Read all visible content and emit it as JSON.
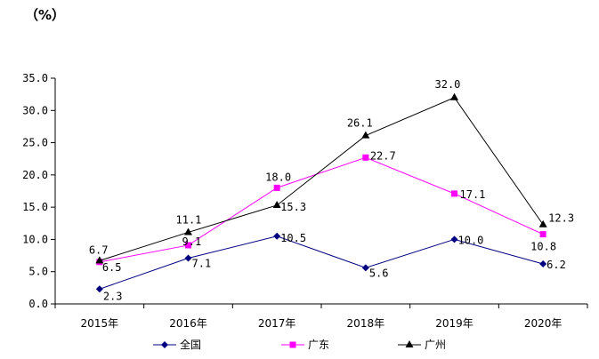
{
  "chart_data": {
    "type": "line",
    "unit_label": "（%）",
    "categories": [
      "2015年",
      "2016年",
      "2017年",
      "2018年",
      "2019年",
      "2020年"
    ],
    "ylim": [
      0,
      35
    ],
    "ytick_labels": [
      "0.0",
      "5.0",
      "10.0",
      "15.0",
      "20.0",
      "25.0",
      "30.0",
      "35.0"
    ],
    "grid": false,
    "legend_position": "bottom",
    "series": [
      {
        "name": "全国",
        "color": "#000080",
        "marker": "diamond",
        "values": [
          2.3,
          7.1,
          10.5,
          5.6,
          10.0,
          6.2
        ],
        "labels": [
          "2.3",
          "7.1",
          "10.5",
          "5.6",
          "10.0",
          "6.2"
        ]
      },
      {
        "name": "广东",
        "color": "#ff00ff",
        "marker": "square",
        "values": [
          6.5,
          9.1,
          18.0,
          22.7,
          17.1,
          10.8
        ],
        "labels": [
          "6.5",
          "9.1",
          "18.0",
          "22.7",
          "17.1",
          "10.8"
        ]
      },
      {
        "name": "广州",
        "color": "#000000",
        "marker": "triangle",
        "values": [
          6.7,
          11.1,
          15.3,
          26.1,
          32.0,
          12.3
        ],
        "labels": [
          "6.7",
          "11.1",
          "15.3",
          "26.1",
          "32.0",
          "12.3"
        ]
      }
    ]
  }
}
